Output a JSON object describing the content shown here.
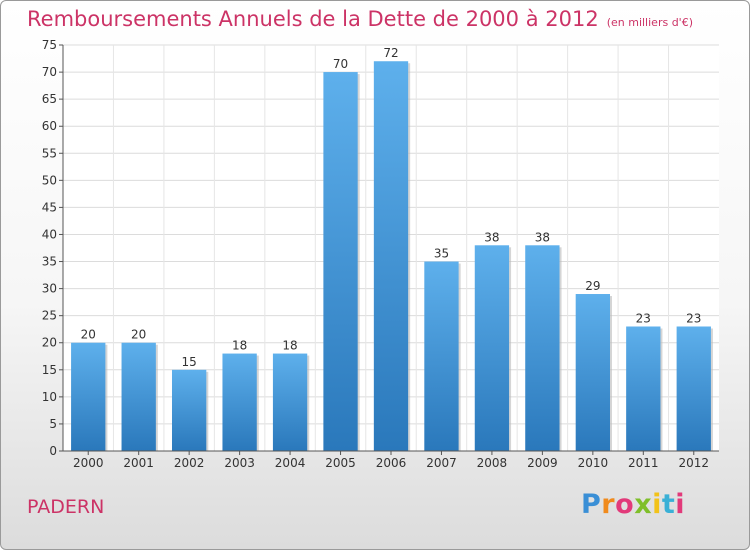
{
  "chart_data": {
    "type": "bar",
    "title": "Remboursements Annuels de la Dette de 2000 à 2012",
    "subtitle": "(en milliers d'€)",
    "categories": [
      "2000",
      "2001",
      "2002",
      "2003",
      "2004",
      "2005",
      "2006",
      "2007",
      "2008",
      "2009",
      "2010",
      "2011",
      "2012"
    ],
    "values": [
      20,
      20,
      15,
      18,
      18,
      70,
      72,
      35,
      38,
      38,
      29,
      23,
      23
    ],
    "ylim": [
      0,
      75
    ],
    "yticks": [
      0,
      5,
      10,
      15,
      20,
      25,
      30,
      35,
      40,
      45,
      50,
      55,
      60,
      65,
      70,
      75
    ],
    "grid": true,
    "xlabel": "",
    "ylabel": "",
    "bar_color": "#3d8fd4"
  },
  "footer": {
    "commune": "PADERN",
    "logo": "Proxiti"
  }
}
